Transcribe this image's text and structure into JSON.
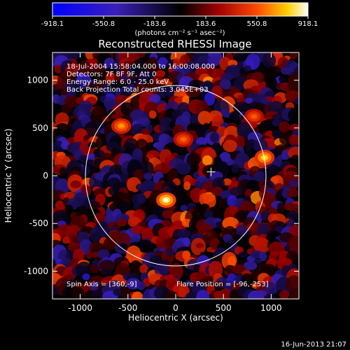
{
  "chart_data": {
    "type": "heatmap",
    "title": "Reconstructed RHESSI Image",
    "xlabel": "Heliocentric X (arcsec)",
    "ylabel": "Heliocentric Y (arcsec)",
    "xlim": [
      -1290,
      1290
    ],
    "ylim": [
      -1290,
      1290
    ],
    "x_ticks": [
      -1000,
      -500,
      0,
      500,
      1000
    ],
    "y_ticks": [
      -1000,
      -500,
      0,
      500,
      1000
    ],
    "colorbar": {
      "ticks": [
        "-918.1",
        "-550.8",
        "-183.6",
        "183.6",
        "550.8",
        "918.1"
      ],
      "range": [
        -918.1,
        918.1
      ],
      "unit_label": "(photons cm⁻² s⁻¹ asec⁻²)"
    },
    "annotations": [
      "18-Jul-2004 15:58:04.000 to 16:00:08.000",
      "Detectors: 7F 8F 9F, Att 0",
      "Energy Range: 6.0 - 25.0 keV",
      "Back Projection    Total counts: 3.045E+03"
    ],
    "spin_axis": "Spin Axis = [360,-9]",
    "flare_position_label": "Flare Position = [-96,-253]",
    "solar_limb_radius_arcsec": 945,
    "flare_marker": [
      370,
      40
    ],
    "bright_sources": [
      {
        "x": -100,
        "y": -255,
        "value": 918.1
      },
      {
        "x": 930,
        "y": 190,
        "value": 820
      },
      {
        "x": -570,
        "y": 520,
        "value": 700
      },
      {
        "x": 80,
        "y": 380,
        "value": 600
      },
      {
        "x": 820,
        "y": 620,
        "value": 580
      }
    ]
  },
  "footer": {
    "timestamp": "16-Jun-2013 21:07"
  },
  "colors": {
    "background": "#000000",
    "foreground": "#ffffff"
  }
}
